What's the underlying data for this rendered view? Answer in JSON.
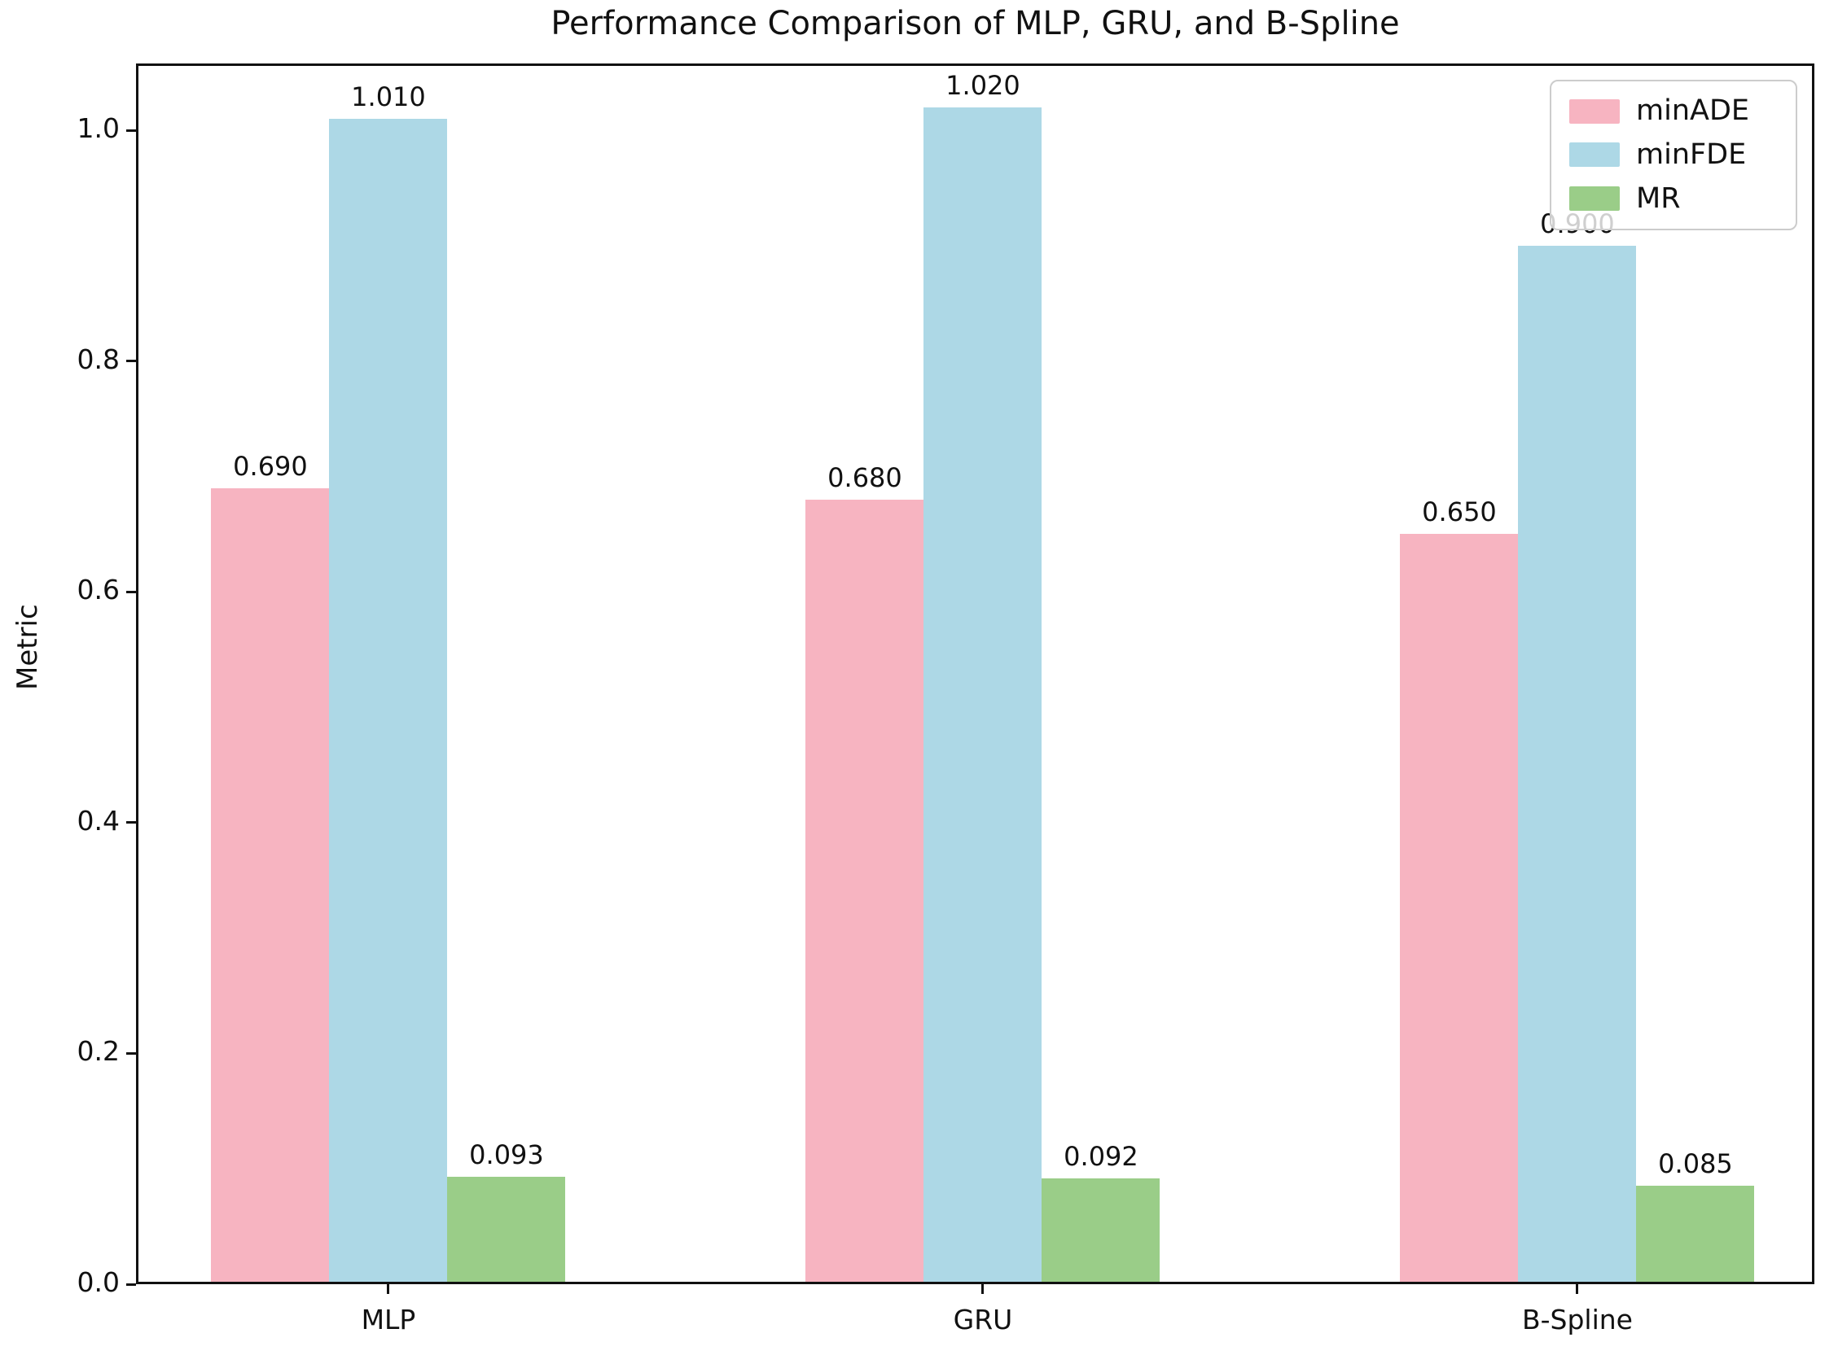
{
  "chart_data": {
    "type": "bar",
    "title": "Performance Comparison of MLP, GRU, and B-Spline",
    "xlabel": "",
    "ylabel": "Metric",
    "categories": [
      "MLP",
      "GRU",
      "B-Spline"
    ],
    "series": [
      {
        "name": "minADE",
        "color": "#F7B4C1",
        "values": [
          0.69,
          0.68,
          0.65
        ],
        "labels": [
          "0.690",
          "0.680",
          "0.650"
        ]
      },
      {
        "name": "minFDE",
        "color": "#ADD8E6",
        "values": [
          1.01,
          1.02,
          0.9
        ],
        "labels": [
          "1.010",
          "1.020",
          "0.900"
        ]
      },
      {
        "name": "MR",
        "color": "#9ACD88",
        "values": [
          0.093,
          0.092,
          0.085
        ],
        "labels": [
          "0.093",
          "0.092",
          "0.085"
        ]
      }
    ],
    "ylim": [
      0,
      1.058
    ],
    "yticks": [
      "0.0",
      "0.2",
      "0.4",
      "0.6",
      "0.8",
      "1.0"
    ],
    "ytick_values": [
      0.0,
      0.2,
      0.4,
      0.6,
      0.8,
      1.0
    ],
    "legend_position": "upper right",
    "grid": false
  }
}
